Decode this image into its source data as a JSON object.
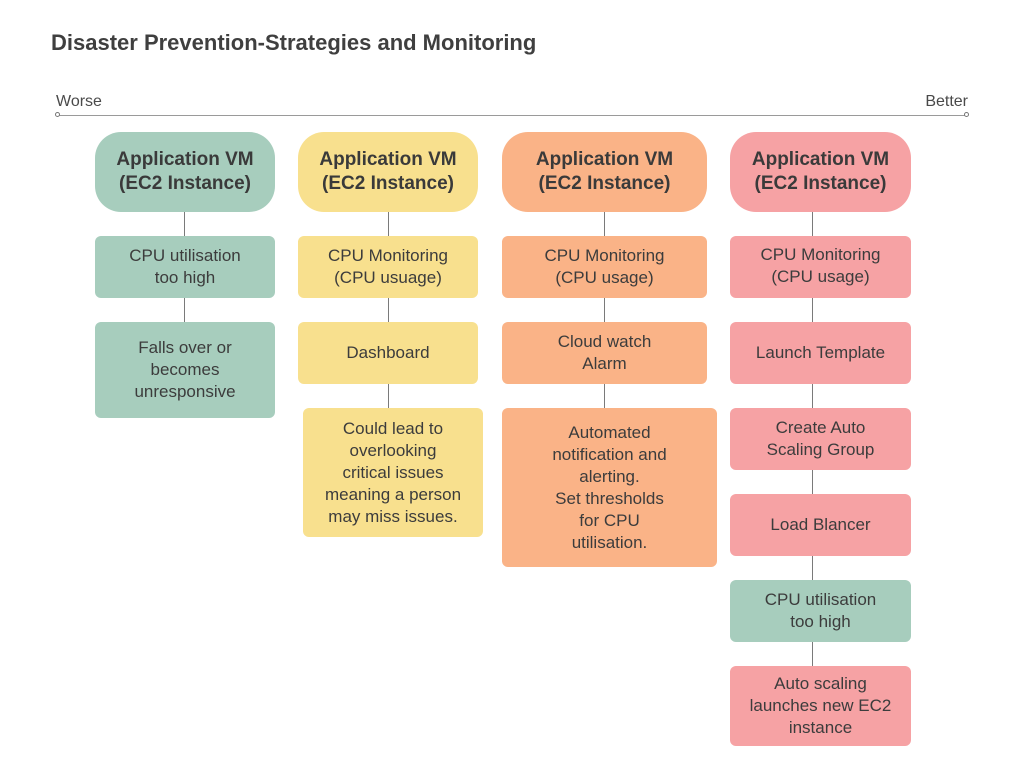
{
  "title": "Disaster Prevention-Strategies and Monitoring",
  "scale": {
    "left_label": "Worse",
    "right_label": "Better"
  },
  "colors": {
    "green": "#a7cdbd",
    "yellow": "#f8e08e",
    "orange": "#fab387",
    "pink": "#f6a2a4"
  },
  "columns": [
    {
      "header": "Application VM\n(EC2 Instance)",
      "steps": [
        "CPU utilisation\ntoo high",
        "Falls over or\nbecomes\nunresponsive"
      ]
    },
    {
      "header": "Application VM\n(EC2 Instance)",
      "steps": [
        "CPU Monitoring\n(CPU usuage)",
        "Dashboard",
        "Could lead to\noverlooking\ncritical issues\nmeaning a person\nmay miss issues."
      ]
    },
    {
      "header": "Application VM\n(EC2 Instance)",
      "steps": [
        "CPU Monitoring\n(CPU usage)",
        "Cloud watch\nAlarm",
        "Automated\nnotification and\nalerting.\nSet thresholds\nfor CPU\nutilisation."
      ]
    },
    {
      "header": "Application VM\n(EC2 Instance)",
      "steps": [
        "CPU Monitoring\n(CPU usage)",
        "Launch Template",
        "Create Auto\nScaling Group",
        "Load Blancer",
        "CPU utilisation\ntoo high",
        "Auto scaling\nlaunches new EC2\ninstance"
      ]
    }
  ]
}
